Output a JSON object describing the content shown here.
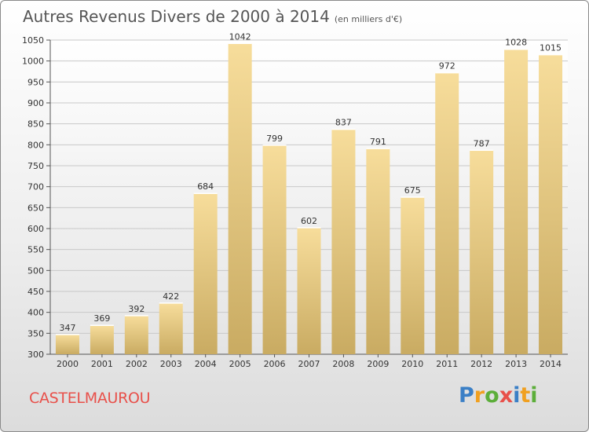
{
  "chart_data": {
    "type": "bar",
    "title": "Autres Revenus Divers de 2000 à 2014",
    "subtitle": "(en milliers d'€)",
    "categories": [
      "2000",
      "2001",
      "2002",
      "2003",
      "2004",
      "2005",
      "2006",
      "2007",
      "2008",
      "2009",
      "2010",
      "2011",
      "2012",
      "2013",
      "2014"
    ],
    "values": [
      347,
      369,
      392,
      422,
      684,
      1042,
      799,
      602,
      837,
      791,
      675,
      972,
      787,
      1028,
      1015
    ],
    "ylim": [
      300,
      1050
    ],
    "yticks": [
      300,
      350,
      400,
      450,
      500,
      550,
      600,
      650,
      700,
      750,
      800,
      850,
      900,
      950,
      1000,
      1050
    ],
    "grid": true,
    "colors": {
      "bar_light": "#f7dd9b",
      "bar_dark": "#c9ab62",
      "grid": "#c8c8c8"
    }
  },
  "footer": {
    "location": "CASTELMAUROU",
    "logo_text": "Proxiti",
    "logo_colors": [
      "#3a7fc6",
      "#f0a020",
      "#5cae3a",
      "#e8504a",
      "#3a7fc6",
      "#f0a020",
      "#5cae3a"
    ]
  }
}
